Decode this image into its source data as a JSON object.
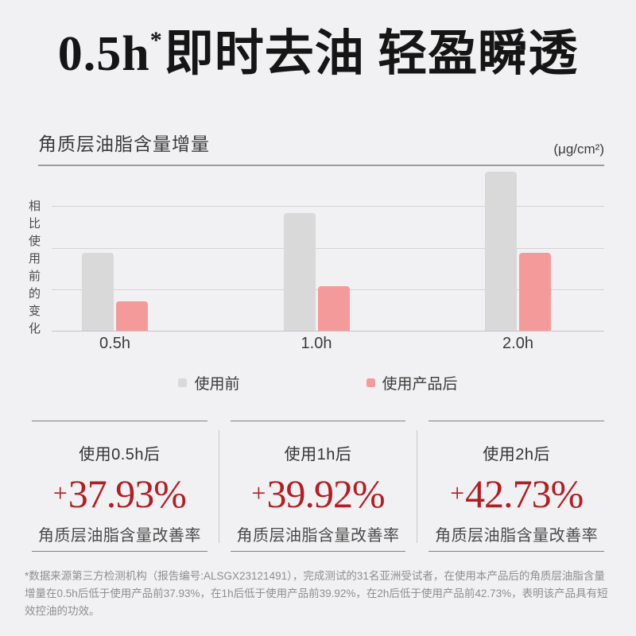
{
  "title": {
    "prefix": "0.5h",
    "asterisk": "*",
    "rest": "即时去油 轻盈瞬透"
  },
  "chart": {
    "title": "角质层油脂含量增量",
    "unit": "(μg/cm²)",
    "ylabel": "相比使用前的变化",
    "legend": [
      {
        "label": "使用前",
        "color": "#d9d9da"
      },
      {
        "label": "使用产品后",
        "color": "#f59a9b"
      }
    ]
  },
  "chart_data": {
    "type": "bar",
    "title": "角质层油脂含量增量",
    "unit_label": "(μg/cm²)",
    "ylabel": "相比使用前的变化",
    "categories": [
      "0.5h",
      "1.0h",
      "2.0h"
    ],
    "series": [
      {
        "name": "使用前",
        "color": "#d9d9da",
        "values": [
          1.88,
          2.83,
          3.83
        ]
      },
      {
        "name": "使用产品后",
        "color": "#f59a9b",
        "values": [
          0.71,
          1.07,
          1.88
        ]
      }
    ],
    "ylim": [
      0,
      4
    ],
    "grid": true,
    "legend_position": "bottom",
    "note": "no numeric tick labels shown; values estimated in gridline units"
  },
  "stats": [
    {
      "label": "使用0.5h后",
      "sign": "+",
      "number": "37.93%",
      "caption": "角质层油脂含量改善率"
    },
    {
      "label": "使用1h后",
      "sign": "+",
      "number": "39.92%",
      "caption": "角质层油脂含量改善率"
    },
    {
      "label": "使用2h后",
      "sign": "+",
      "number": "42.73%",
      "caption": "角质层油脂含量改善率"
    }
  ],
  "footnote": "*数据来源第三方检测机构（报告编号:ALSGX23121491），完成测试的31名亚洲受试者，在使用本产品后的角质层油脂含量增量在0.5h后低于使用产品前37.93%，在1h后低于使用产品前39.92%，在2h后低于使用产品前42.73%，表明该产品具有短效控油的功效。",
  "colors": {
    "background": "#f1f1f3",
    "accent_red": "#b01f24",
    "bar_before": "#d9d9da",
    "bar_after": "#f59a9b"
  }
}
